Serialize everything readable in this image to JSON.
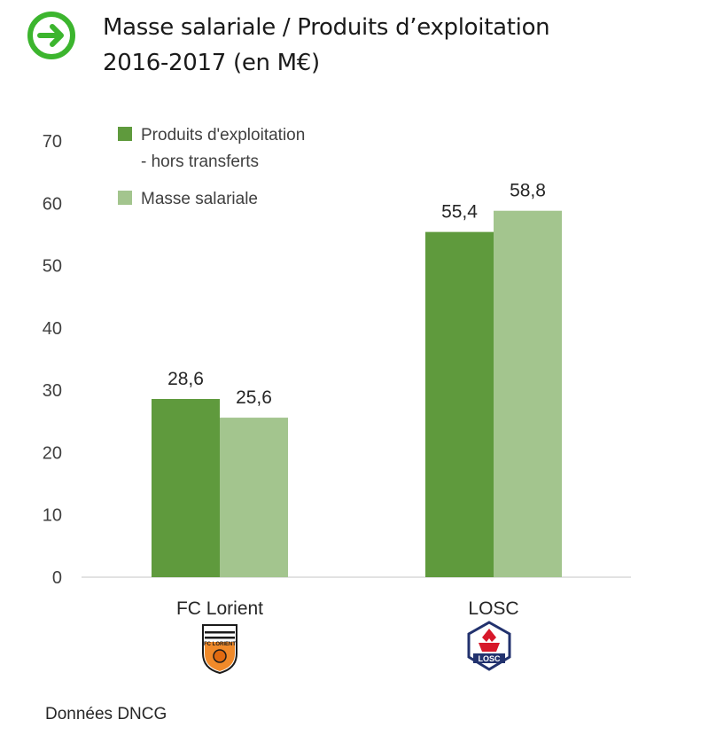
{
  "header": {
    "title_line_1": "Masse salariale / Produits d’exploitation",
    "title_line_2": "2016-2017 (en M€)",
    "icon": "arrow-circle-right-icon",
    "icon_color": "#3cb52e"
  },
  "chart_data": {
    "type": "bar",
    "categories": [
      "FC Lorient",
      "LOSC"
    ],
    "series": [
      {
        "name": "Produits d'exploitation - hors transferts",
        "name_lines": [
          "Produits d'exploitation",
          "- hors transferts"
        ],
        "values": [
          28.6,
          55.4
        ],
        "labels": [
          "28,6",
          "55,4"
        ],
        "color": "#5f9a3d"
      },
      {
        "name": "Masse salariale",
        "name_lines": [
          "Masse salariale"
        ],
        "values": [
          25.6,
          58.8
        ],
        "labels": [
          "25,6",
          "58,8"
        ],
        "color": "#a3c58e"
      }
    ],
    "ylim": [
      0,
      70
    ],
    "yticks": [
      0,
      10,
      20,
      30,
      40,
      50,
      60,
      70
    ],
    "grid": false,
    "legend_position": "top-left",
    "category_logos": [
      "fc-lorient-crest-icon",
      "losc-crest-icon"
    ],
    "logo_text": [
      "FC LORIENT",
      "LOSC"
    ]
  },
  "footer": {
    "source": "Données DNCG"
  }
}
